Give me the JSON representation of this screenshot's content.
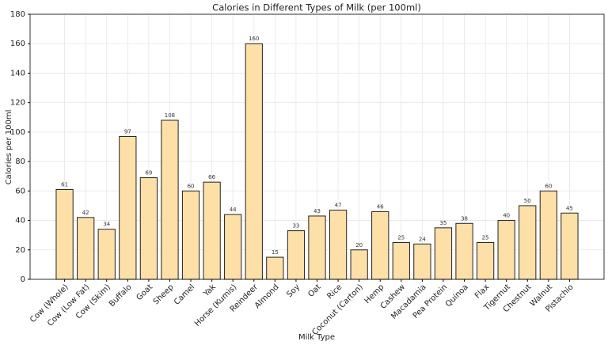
{
  "chart_data": {
    "type": "bar",
    "title": "Calories in Different Types of Milk (per 100ml)",
    "x_label": "Milk Type",
    "y_label": "Calories per 100ml",
    "categories": [
      "Cow (Whole)",
      "Cow (Low Fat)",
      "Cow (Skim)",
      "Buffalo",
      "Goat",
      "Sheep",
      "Camel",
      "Yak",
      "Horse (Kumis)",
      "Reindeer",
      "Almond",
      "Soy",
      "Oat",
      "Rice",
      "Coconut (Carton)",
      "Hemp",
      "Cashew",
      "Macadamia",
      "Pea Protein",
      "Quinoa",
      "Flax",
      "Tigernut",
      "Chestnut",
      "Walnut",
      "Pistachio"
    ],
    "values": [
      61,
      42,
      34,
      97,
      69,
      108,
      60,
      66,
      44,
      160,
      15,
      33,
      43,
      47,
      20,
      46,
      25,
      24,
      35,
      38,
      25,
      40,
      50,
      60,
      45
    ],
    "color": "#fddfa8",
    "ylim": [
      0,
      180
    ],
    "yticks": [
      0,
      20,
      40,
      60,
      80,
      100,
      120,
      140,
      160,
      180
    ],
    "grid": true
  }
}
